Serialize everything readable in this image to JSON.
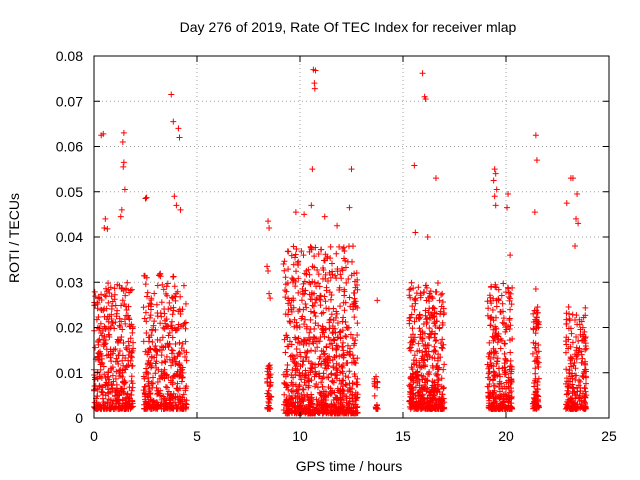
{
  "chart_data": {
    "type": "scatter",
    "title": "Day 276 of 2019, Rate Of TEC Index for receiver mlap",
    "xlabel": "GPS time / hours",
    "ylabel": "ROTI / TECUs",
    "xlim": [
      0,
      25
    ],
    "ylim": [
      0,
      0.08
    ],
    "xticks": [
      0,
      5,
      10,
      15,
      20,
      25
    ],
    "yticks": [
      0,
      0.01,
      0.02,
      0.03,
      0.04,
      0.05,
      0.06,
      0.07,
      0.08
    ],
    "xtick_labels": [
      "0",
      "5",
      "10",
      "15",
      "20",
      "25"
    ],
    "ytick_labels": [
      "0",
      "0.01",
      "0.02",
      "0.03",
      "0.04",
      "0.05",
      "0.06",
      "0.07",
      "0.08"
    ],
    "grid": true,
    "marker": "+",
    "color": "#ff0000",
    "clusters": [
      {
        "x_start": 0.0,
        "x_end": 1.9,
        "y_low": 0.002,
        "y_peak": 0.03,
        "n": 420
      },
      {
        "x_start": 2.4,
        "x_end": 4.5,
        "y_low": 0.002,
        "y_peak": 0.032,
        "n": 420
      },
      {
        "x_start": 8.4,
        "x_end": 8.6,
        "y_low": 0.002,
        "y_peak": 0.012,
        "n": 40
      },
      {
        "x_start": 9.2,
        "x_end": 12.8,
        "y_low": 0.001,
        "y_peak": 0.038,
        "n": 900
      },
      {
        "x_start": 13.6,
        "x_end": 13.8,
        "y_low": 0.002,
        "y_peak": 0.01,
        "n": 20
      },
      {
        "x_start": 15.3,
        "x_end": 17.0,
        "y_low": 0.002,
        "y_peak": 0.03,
        "n": 450
      },
      {
        "x_start": 19.1,
        "x_end": 20.3,
        "y_low": 0.002,
        "y_peak": 0.03,
        "n": 300
      },
      {
        "x_start": 21.3,
        "x_end": 21.6,
        "y_low": 0.002,
        "y_peak": 0.025,
        "n": 90
      },
      {
        "x_start": 22.9,
        "x_end": 23.9,
        "y_low": 0.002,
        "y_peak": 0.025,
        "n": 220
      }
    ],
    "points": [
      [
        0.35,
        0.0625
      ],
      [
        0.45,
        0.0628
      ],
      [
        1.45,
        0.063
      ],
      [
        1.4,
        0.061
      ],
      [
        1.45,
        0.0565
      ],
      [
        1.42,
        0.0555
      ],
      [
        1.5,
        0.0505
      ],
      [
        0.55,
        0.044
      ],
      [
        0.5,
        0.042
      ],
      [
        0.65,
        0.0418
      ],
      [
        1.35,
        0.046
      ],
      [
        1.3,
        0.0445
      ],
      [
        2.5,
        0.0485
      ],
      [
        2.55,
        0.0487
      ],
      [
        3.75,
        0.0715
      ],
      [
        3.85,
        0.0655
      ],
      [
        4.1,
        0.064
      ],
      [
        4.15,
        0.062
      ],
      [
        3.9,
        0.049
      ],
      [
        4.0,
        0.047
      ],
      [
        4.2,
        0.046
      ],
      [
        8.45,
        0.0435
      ],
      [
        8.5,
        0.042
      ],
      [
        8.4,
        0.0335
      ],
      [
        8.45,
        0.0325
      ],
      [
        8.5,
        0.0275
      ],
      [
        8.55,
        0.0265
      ],
      [
        10.65,
        0.077
      ],
      [
        10.75,
        0.0768
      ],
      [
        10.7,
        0.074
      ],
      [
        10.72,
        0.0728
      ],
      [
        10.6,
        0.055
      ],
      [
        12.5,
        0.055
      ],
      [
        10.55,
        0.047
      ],
      [
        9.8,
        0.0455
      ],
      [
        10.2,
        0.045
      ],
      [
        12.4,
        0.0465
      ],
      [
        11.2,
        0.0445
      ],
      [
        11.8,
        0.0425
      ],
      [
        13.75,
        0.026
      ],
      [
        15.55,
        0.0558
      ],
      [
        15.95,
        0.0762
      ],
      [
        16.05,
        0.071
      ],
      [
        16.1,
        0.0705
      ],
      [
        16.6,
        0.053
      ],
      [
        15.6,
        0.041
      ],
      [
        16.2,
        0.04
      ],
      [
        19.45,
        0.055
      ],
      [
        19.5,
        0.054
      ],
      [
        19.4,
        0.0525
      ],
      [
        19.55,
        0.0505
      ],
      [
        19.45,
        0.049
      ],
      [
        19.5,
        0.047
      ],
      [
        20.1,
        0.0495
      ],
      [
        20.05,
        0.0465
      ],
      [
        20.2,
        0.036
      ],
      [
        21.45,
        0.0625
      ],
      [
        21.5,
        0.057
      ],
      [
        21.4,
        0.0455
      ],
      [
        21.45,
        0.0285
      ],
      [
        23.15,
        0.053
      ],
      [
        23.25,
        0.053
      ],
      [
        23.45,
        0.0495
      ],
      [
        23.4,
        0.044
      ],
      [
        23.5,
        0.043
      ],
      [
        22.95,
        0.0475
      ],
      [
        23.35,
        0.038
      ]
    ]
  }
}
